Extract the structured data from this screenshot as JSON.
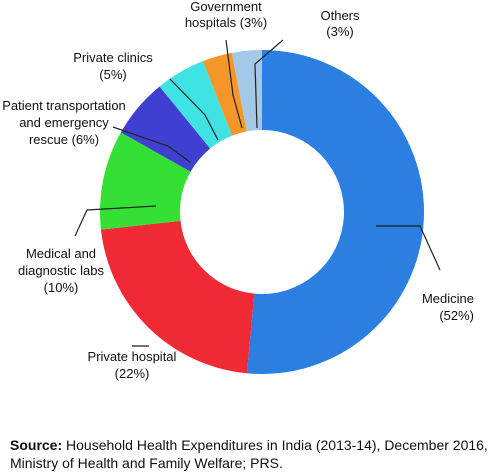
{
  "chart_data": {
    "type": "pie",
    "donut": true,
    "start_angle_deg": 0,
    "direction": "clockwise",
    "slices": [
      {
        "label": "Medicine",
        "value": 52,
        "value_label": "(52%)",
        "color": "#2a7fe0"
      },
      {
        "label": "Private hospital",
        "value": 22,
        "value_label": "(22%)",
        "color": "#f02a35"
      },
      {
        "label": "Medical and diagnostic labs",
        "value": 10,
        "value_label": "(10%)",
        "color": "#33e033"
      },
      {
        "label": "Patient transportation and emergency rescue",
        "value": 6,
        "value_label": "rescue (6%)",
        "color": "#3f3fd1"
      },
      {
        "label": "Private clinics",
        "value": 5,
        "value_label": "(5%)",
        "color": "#3fe3e3"
      },
      {
        "label": "Government hospitals",
        "value": 3,
        "value_label": "hospitals (3%)",
        "color": "#f5962a"
      },
      {
        "label": "Others",
        "value": 3,
        "value_label": "(3%)",
        "color": "#a3c8e8"
      }
    ],
    "labels": {
      "medicine": [
        "Medicine",
        "(52%)"
      ],
      "private_hospital": [
        "Private hospital",
        "(22%)"
      ],
      "labs": [
        "Medical and",
        "diagnostic labs",
        "(10%)"
      ],
      "transport": [
        "Patient transportation",
        "and emergency",
        "rescue (6%)"
      ],
      "clinics": [
        "Private clinics",
        "(5%)"
      ],
      "government": [
        "Government",
        "hospitals (3%)"
      ],
      "others": [
        "Others",
        "(3%)"
      ]
    }
  },
  "source": {
    "label": "Source:",
    "line1": " Household Health Expenditures in India (2013-14), December 2016,",
    "line2": "Ministry of Health and Family Welfare; PRS."
  }
}
